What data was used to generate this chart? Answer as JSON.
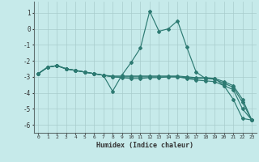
{
  "xlabel": "Humidex (Indice chaleur)",
  "background_color": "#c6eaea",
  "line_color": "#2d7a72",
  "grid_color": "#a8cccc",
  "xlim": [
    -0.5,
    23.5
  ],
  "ylim": [
    -6.5,
    1.7
  ],
  "yticks": [
    1,
    0,
    -1,
    -2,
    -3,
    -4,
    -5,
    -6
  ],
  "xticks": [
    0,
    1,
    2,
    3,
    4,
    5,
    6,
    7,
    8,
    9,
    10,
    11,
    12,
    13,
    14,
    15,
    16,
    17,
    18,
    19,
    20,
    21,
    22,
    23
  ],
  "series": [
    {
      "x": [
        0,
        1,
        2,
        3,
        4,
        5,
        6,
        7,
        8,
        9,
        10,
        11,
        12,
        13,
        14,
        15,
        16,
        17,
        18,
        19,
        20,
        21,
        22,
        23
      ],
      "y": [
        -2.8,
        -2.4,
        -2.3,
        -2.5,
        -2.6,
        -2.7,
        -2.8,
        -2.9,
        -3.9,
        -2.9,
        -2.1,
        -1.2,
        1.1,
        -0.15,
        0.0,
        0.5,
        -1.15,
        -2.7,
        -3.1,
        -3.1,
        -3.55,
        -4.4,
        -5.6,
        -5.7
      ]
    },
    {
      "x": [
        0,
        1,
        2,
        3,
        4,
        5,
        6,
        7,
        8,
        9,
        10,
        11,
        12,
        13,
        14,
        15,
        16,
        17,
        18,
        19,
        20,
        21,
        22,
        23
      ],
      "y": [
        -2.8,
        -2.4,
        -2.3,
        -2.5,
        -2.6,
        -2.7,
        -2.8,
        -2.9,
        -3.0,
        -3.05,
        -3.1,
        -3.1,
        -3.05,
        -3.05,
        -3.0,
        -3.0,
        -3.1,
        -3.2,
        -3.25,
        -3.3,
        -3.55,
        -3.8,
        -5.0,
        -5.7
      ]
    },
    {
      "x": [
        0,
        1,
        2,
        3,
        4,
        5,
        6,
        7,
        8,
        9,
        10,
        11,
        12,
        13,
        14,
        15,
        16,
        17,
        18,
        19,
        20,
        21,
        22,
        23
      ],
      "y": [
        -2.8,
        -2.4,
        -2.3,
        -2.5,
        -2.6,
        -2.7,
        -2.8,
        -2.9,
        -3.0,
        -3.0,
        -3.0,
        -3.0,
        -3.0,
        -3.0,
        -3.0,
        -3.0,
        -3.05,
        -3.1,
        -3.1,
        -3.15,
        -3.4,
        -3.65,
        -4.6,
        -5.7
      ]
    },
    {
      "x": [
        0,
        1,
        2,
        3,
        4,
        5,
        6,
        7,
        8,
        9,
        10,
        11,
        12,
        13,
        14,
        15,
        16,
        17,
        18,
        19,
        20,
        21,
        22,
        23
      ],
      "y": [
        -2.8,
        -2.4,
        -2.3,
        -2.5,
        -2.6,
        -2.7,
        -2.8,
        -2.9,
        -2.95,
        -2.95,
        -2.95,
        -2.95,
        -2.95,
        -2.95,
        -2.95,
        -2.95,
        -3.0,
        -3.05,
        -3.05,
        -3.1,
        -3.3,
        -3.55,
        -4.4,
        -5.7
      ]
    }
  ]
}
